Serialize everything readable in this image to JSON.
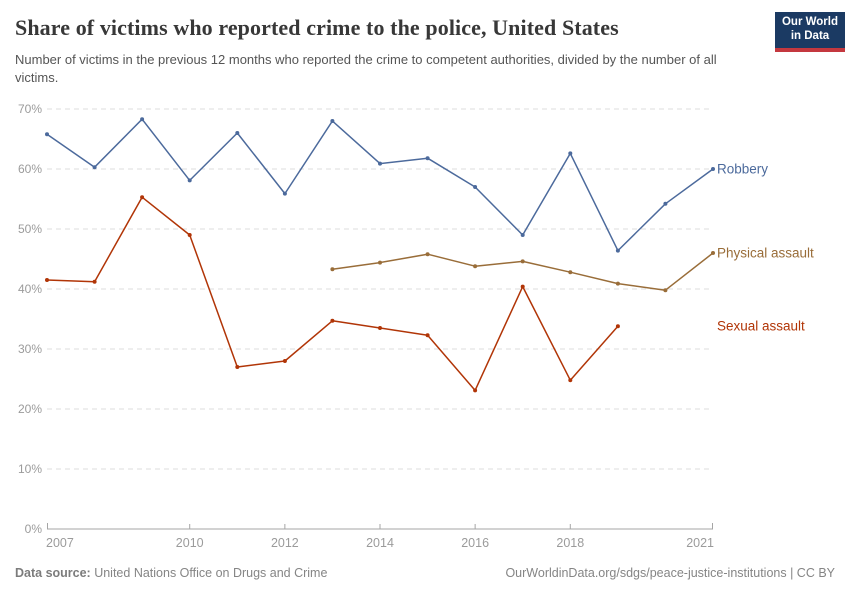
{
  "header": {
    "title": "Share of victims who reported crime to the police, United States",
    "subtitle": "Number of victims in the previous 12 months who reported the crime to competent authorities, divided by the number of all victims.",
    "logo": {
      "line1": "Our World",
      "line2": "in Data",
      "bg_color": "#1b3a63",
      "stripe_color": "#c4383f"
    }
  },
  "chart_data": {
    "type": "line",
    "title": "Share of victims who reported crime to the police, United States",
    "xlabel": "",
    "ylabel": "",
    "xlim": [
      2007,
      2021
    ],
    "ylim": [
      0,
      70
    ],
    "yticks": [
      0,
      10,
      20,
      30,
      40,
      50,
      60,
      70
    ],
    "ytick_suffix": "%",
    "xticks": [
      2007,
      2010,
      2012,
      2014,
      2016,
      2018,
      2021
    ],
    "grid": "horizontal-dashed",
    "legend_position": "right-end-labels",
    "series": [
      {
        "name": "Robbery",
        "color": "#4C6A9C",
        "x": [
          2007,
          2008,
          2009,
          2010,
          2011,
          2012,
          2013,
          2014,
          2015,
          2016,
          2017,
          2018,
          2019,
          2020,
          2021
        ],
        "values": [
          65.8,
          60.3,
          68.3,
          58.1,
          66.0,
          55.9,
          68.0,
          60.9,
          61.8,
          57.0,
          49.0,
          62.6,
          46.4,
          54.2,
          60.0
        ]
      },
      {
        "name": "Physical assault",
        "color": "#996D39",
        "x": [
          2013,
          2014,
          2015,
          2016,
          2017,
          2018,
          2019,
          2020,
          2021
        ],
        "values": [
          43.3,
          44.4,
          45.8,
          43.8,
          44.6,
          42.8,
          40.9,
          39.8,
          46.0
        ]
      },
      {
        "name": "Sexual assault",
        "color": "#B13507",
        "x": [
          2007,
          2008,
          2009,
          2010,
          2011,
          2012,
          2013,
          2014,
          2015,
          2016,
          2017,
          2018,
          2019
        ],
        "values": [
          41.5,
          41.2,
          55.3,
          49.0,
          27.0,
          28.0,
          34.7,
          33.5,
          32.3,
          23.1,
          40.4,
          24.8,
          33.8
        ]
      }
    ],
    "style": {
      "grid_color": "#dcdcdc",
      "axis_color": "#a5a5a5",
      "tick_label_color": "#9b9b9b"
    }
  },
  "footer": {
    "datasource_label": "Data source:",
    "datasource_value": " United Nations Office on Drugs and Crime",
    "credit": "OurWorldinData.org/sdgs/peace-justice-institutions | CC BY"
  }
}
